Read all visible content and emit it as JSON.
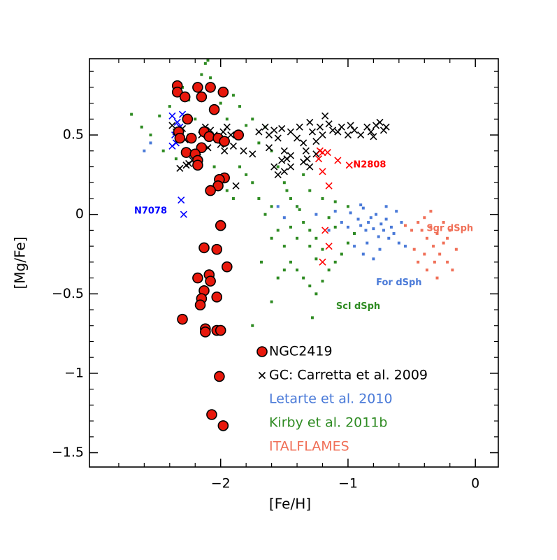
{
  "chart_data": {
    "type": "scatter",
    "x_label": "[Fe/H]",
    "y_label": "[Mg/Fe]",
    "xlim": [
      -3.03,
      0.18
    ],
    "ylim": [
      -1.59,
      0.98
    ],
    "xticks": [
      {
        "value": -2,
        "label": "−2"
      },
      {
        "value": -1,
        "label": "−1"
      },
      0
    ],
    "yticks": [
      {
        "value": -1.5,
        "label": "−1.5"
      },
      {
        "value": -1,
        "label": "−1"
      },
      {
        "value": -0.5,
        "label": "−0.5"
      },
      0,
      0.5
    ],
    "xminor_ticks": [
      -2.8,
      -2.6,
      -2.4,
      -2.2,
      -1.8,
      -1.6,
      -1.4,
      -1.2,
      -0.8,
      -0.6,
      -0.4,
      -0.2
    ],
    "yminor_ticks": [
      -1.4,
      -1.3,
      -1.2,
      -1.1,
      -0.9,
      -0.8,
      -0.7,
      -0.6,
      -0.4,
      -0.3,
      -0.2,
      -0.1,
      0.1,
      0.2,
      0.3,
      0.4,
      0.6,
      0.7,
      0.8,
      0.9
    ],
    "series": [
      {
        "name": "NGC2419",
        "color": "#e8180c",
        "marker": "circle",
        "x": [
          -2.34,
          -2.34,
          -2.18,
          -2.08,
          -1.98,
          -2.28,
          -2.15,
          -2.05,
          -2.26,
          -2.33,
          -2.32,
          -2.23,
          -2.13,
          -2.09,
          -2.02,
          -1.97,
          -1.86,
          -2.15,
          -2.27,
          -2.2,
          -2.18,
          -2.18,
          -1.97,
          -2.01,
          -2.02,
          -2.08,
          -2.0,
          -2.13,
          -2.03,
          -1.95,
          -2.18,
          -2.09,
          -2.08,
          -2.13,
          -2.15,
          -2.16,
          -2.03,
          -2.3,
          -2.12,
          -2.12,
          -2.03,
          -2.0,
          -2.01,
          -2.07,
          -1.98
        ],
        "values": [
          0.81,
          0.77,
          0.8,
          0.8,
          0.77,
          0.74,
          0.74,
          0.66,
          0.6,
          0.52,
          0.48,
          0.48,
          0.52,
          0.49,
          0.48,
          0.46,
          0.5,
          0.42,
          0.39,
          0.38,
          0.34,
          0.31,
          0.23,
          0.22,
          0.18,
          0.15,
          -0.07,
          -0.21,
          -0.22,
          -0.33,
          -0.4,
          -0.38,
          -0.42,
          -0.48,
          -0.53,
          -0.57,
          -0.52,
          -0.66,
          -0.72,
          -0.74,
          -0.73,
          -0.73,
          -1.02,
          -1.26,
          -1.33
        ]
      },
      {
        "name": "GC: Carretta et al. 2009",
        "color": "#000000",
        "marker": "cross",
        "x": [
          -2.38,
          -2.35,
          -2.33,
          -2.3,
          -2.28,
          -2.32,
          -2.27,
          -2.25,
          -2.22,
          -2.18,
          -2.15,
          -2.12,
          -2.08,
          -2.05,
          -2.02,
          -2.0,
          -1.98,
          -1.95,
          -1.92,
          -1.9,
          -1.97,
          -2.1,
          -1.88,
          -1.82,
          -1.75,
          -1.7,
          -1.65,
          -1.62,
          -1.58,
          -1.55,
          -1.52,
          -1.5,
          -1.48,
          -1.45,
          -1.5,
          -1.55,
          -1.58,
          -1.52,
          -1.45,
          -1.4,
          -1.38,
          -1.35,
          -1.33,
          -1.3,
          -1.28,
          -1.25,
          -1.22,
          -1.2,
          -1.18,
          -1.15,
          -1.12,
          -1.35,
          -1.32,
          -1.3,
          -1.25,
          -1.08,
          -1.05,
          -1.0,
          -0.98,
          -0.95,
          -0.9,
          -0.85,
          -0.82,
          -0.8,
          -0.78,
          -0.75,
          -0.72,
          -0.7,
          -1.45,
          -1.62
        ],
        "values": [
          0.56,
          0.52,
          0.49,
          0.54,
          0.47,
          0.29,
          0.31,
          0.32,
          0.34,
          0.36,
          0.5,
          0.55,
          0.53,
          0.5,
          0.47,
          0.44,
          0.52,
          0.55,
          0.5,
          0.43,
          0.4,
          0.42,
          0.18,
          0.4,
          0.38,
          0.52,
          0.55,
          0.5,
          0.53,
          0.48,
          0.54,
          0.4,
          0.35,
          0.3,
          0.27,
          0.25,
          0.3,
          0.34,
          0.52,
          0.48,
          0.55,
          0.45,
          0.4,
          0.58,
          0.52,
          0.46,
          0.55,
          0.5,
          0.62,
          0.57,
          0.53,
          0.33,
          0.35,
          0.3,
          0.38,
          0.52,
          0.55,
          0.5,
          0.56,
          0.53,
          0.5,
          0.55,
          0.52,
          0.49,
          0.56,
          0.58,
          0.53,
          0.55,
          0.37,
          0.42
        ]
      },
      {
        "name": "Letarte et al. 2010",
        "color": "#4a7ad8",
        "marker": "square",
        "x": [
          -2.6,
          -2.55,
          -2.2,
          -1.1,
          -1.05,
          -1.0,
          -0.98,
          -0.95,
          -0.92,
          -0.9,
          -0.88,
          -0.86,
          -0.84,
          -0.82,
          -0.8,
          -0.78,
          -0.76,
          -0.74,
          -0.72,
          -0.7,
          -0.68,
          -0.66,
          -0.64,
          -0.62,
          -0.6,
          -0.58,
          -0.55,
          -0.85,
          -0.88,
          -0.8,
          -0.95,
          -1.15,
          -1.25,
          -1.4,
          -1.5,
          -0.75,
          -0.7,
          -0.9,
          -1.55
        ],
        "values": [
          0.4,
          0.45,
          0.32,
          0.02,
          -0.05,
          -0.08,
          0.01,
          -0.12,
          -0.03,
          -0.07,
          0.04,
          -0.1,
          -0.05,
          -0.02,
          -0.09,
          0.0,
          -0.14,
          -0.06,
          -0.1,
          -0.03,
          -0.15,
          -0.08,
          -0.12,
          0.02,
          -0.18,
          -0.05,
          -0.2,
          -0.18,
          -0.25,
          -0.28,
          -0.2,
          -0.1,
          0.0,
          0.05,
          -0.02,
          -0.22,
          0.05,
          0.06,
          0.05
        ]
      },
      {
        "name": "Kirby et al. 2011b",
        "color": "#2e8b22",
        "marker": "square",
        "x": [
          -2.7,
          -2.62,
          -2.55,
          -2.48,
          -2.45,
          -2.4,
          -2.3,
          -2.25,
          -2.2,
          -2.15,
          -2.12,
          -2.1,
          -2.08,
          -2.0,
          -1.95,
          -1.9,
          -1.85,
          -1.8,
          -1.75,
          -1.7,
          -1.65,
          -1.6,
          -1.55,
          -1.5,
          -1.45,
          -1.4,
          -1.35,
          -1.3,
          -1.25,
          -1.2,
          -1.15,
          -1.1,
          -1.05,
          -1.0,
          -0.95,
          -1.6,
          -1.55,
          -1.5,
          -1.45,
          -1.4,
          -1.35,
          -1.3,
          -1.25,
          -1.2,
          -1.15,
          -1.1,
          -1.7,
          -1.65,
          -1.6,
          -1.75,
          -1.8,
          -1.85,
          -1.4,
          -1.3,
          -1.2,
          -1.35,
          -1.45,
          -1.5,
          -1.55,
          -1.6,
          -1.3,
          -1.25,
          -1.1,
          -1.0,
          -1.28,
          -1.75,
          -1.9,
          -2.05,
          -2.0,
          -1.95,
          -2.25,
          -2.35,
          -1.68,
          -1.38,
          -1.48
        ],
        "values": [
          0.63,
          0.55,
          0.5,
          0.62,
          0.4,
          0.68,
          0.8,
          0.72,
          0.6,
          0.88,
          0.95,
          0.97,
          0.86,
          0.7,
          0.6,
          0.75,
          0.68,
          0.56,
          0.6,
          0.45,
          0.55,
          0.4,
          0.3,
          0.2,
          0.1,
          0.05,
          -0.05,
          -0.1,
          -0.15,
          -0.22,
          -0.35,
          -0.3,
          -0.25,
          -0.18,
          -0.12,
          0.05,
          -0.1,
          -0.2,
          -0.3,
          -0.35,
          -0.4,
          -0.45,
          -0.5,
          -0.42,
          -0.02,
          0.08,
          0.1,
          0.0,
          -0.15,
          0.2,
          0.25,
          0.3,
          -0.15,
          0.15,
          0.1,
          0.25,
          -0.08,
          -0.35,
          -0.4,
          -0.55,
          -0.2,
          -0.28,
          -0.08,
          0.05,
          -0.65,
          -0.7,
          0.1,
          0.3,
          0.22,
          0.15,
          0.5,
          0.35,
          -0.3,
          0.03,
          0.15
        ]
      },
      {
        "name": "ITALFLAMES",
        "color": "#f07058",
        "marker": "square",
        "x": [
          -0.45,
          -0.42,
          -0.4,
          -0.38,
          -0.35,
          -0.33,
          -0.3,
          -0.28,
          -0.25,
          -0.22,
          -0.2,
          -0.18,
          -0.15,
          -0.32,
          -0.4,
          -0.38,
          -0.25,
          -0.5,
          -0.48,
          -0.35,
          -0.3,
          -0.22,
          -0.45,
          -0.55
        ],
        "values": [
          -0.05,
          -0.1,
          -0.02,
          -0.15,
          -0.08,
          -0.2,
          -0.12,
          -0.25,
          -0.18,
          -0.3,
          -0.1,
          -0.35,
          -0.22,
          -0.3,
          -0.25,
          -0.35,
          -0.05,
          -0.1,
          -0.22,
          0.02,
          -0.4,
          -0.15,
          -0.3,
          -0.07
        ]
      },
      {
        "color": "#0000ff",
        "marker": "cross",
        "x": [
          -2.38,
          -2.34,
          -2.32,
          -2.3,
          -2.36,
          -2.35,
          -2.38,
          -2.33,
          -2.31,
          -2.29
        ],
        "values": [
          0.62,
          0.58,
          0.55,
          0.63,
          0.5,
          0.45,
          0.43,
          0.47,
          0.09,
          0.0
        ]
      },
      {
        "color": "#ff0000",
        "marker": "cross",
        "x": [
          -1.2,
          -1.16,
          -1.23,
          -1.08,
          -0.99,
          -1.2,
          -1.15,
          -1.18,
          -1.15,
          -1.2,
          -1.22
        ],
        "values": [
          0.39,
          0.39,
          0.35,
          0.34,
          0.31,
          0.27,
          0.18,
          -0.1,
          -0.2,
          -0.3,
          0.4
        ]
      }
    ],
    "annotations": [
      {
        "text": "N7078",
        "x": -2.55,
        "y": 0.02,
        "color": "#0000ff"
      },
      {
        "text": "N2808",
        "x": -0.83,
        "y": 0.31,
        "color": "#ff0000"
      },
      {
        "text": "Sgr dSph",
        "x": -0.2,
        "y": -0.09,
        "color": "#f07058"
      },
      {
        "text": "For dSph",
        "x": -0.6,
        "y": -0.43,
        "color": "#4a7ad8"
      },
      {
        "text": "Scl dSph",
        "x": -0.92,
        "y": -0.58,
        "color": "#2e8b22"
      }
    ]
  }
}
